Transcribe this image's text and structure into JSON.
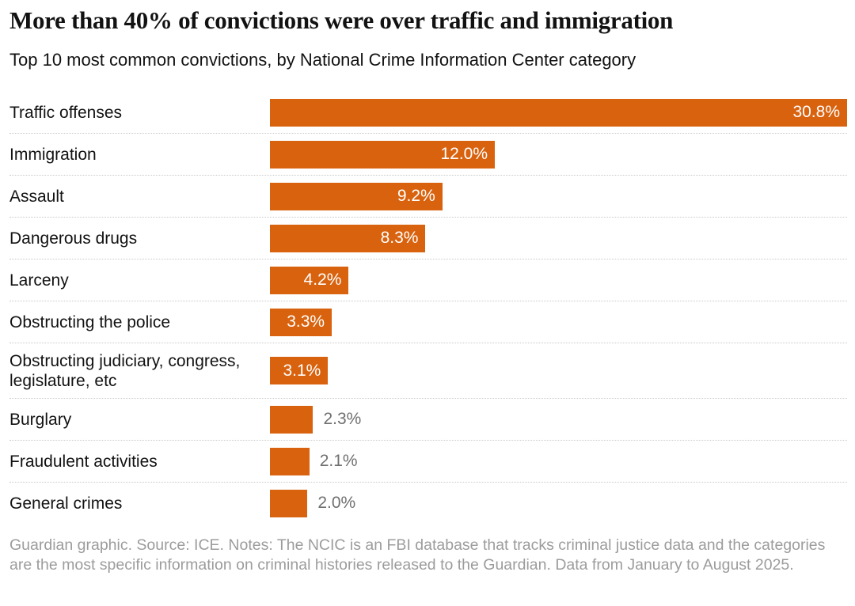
{
  "chart_data": {
    "type": "bar",
    "orientation": "horizontal",
    "title": "More than 40% of convictions were over traffic and immigration",
    "subtitle": "Top 10 most common convictions, by National Crime Information Center category",
    "categories": [
      "Traffic offenses",
      "Immigration",
      "Assault",
      "Dangerous drugs",
      "Larceny",
      "Obstructing the police",
      "Obstructing judiciary, congress, legislature, etc",
      "Burglary",
      "Fraudulent activities",
      "General crimes"
    ],
    "values": [
      30.8,
      12.0,
      9.2,
      8.3,
      4.2,
      3.3,
      3.1,
      2.3,
      2.1,
      2.0
    ],
    "value_labels": [
      "30.8%",
      "12.0%",
      "9.2%",
      "8.3%",
      "4.2%",
      "3.3%",
      "3.1%",
      "2.3%",
      "2.1%",
      "2.0%"
    ],
    "xlim": [
      0,
      30.8
    ],
    "inside_label_min": 3.0,
    "bar_color": "#d9620e",
    "grid": "dotted-row-separators",
    "legend": "none"
  },
  "colors": {
    "bar": "#d9620e",
    "value_label_inside": "#ffffff",
    "value_label_outside": "#707070",
    "separator": "#c9c9c9",
    "text": "#121212",
    "footer_text": "#9c9c9c",
    "background": "#ffffff"
  },
  "footer": {
    "note": "Guardian graphic. Source: ICE. Notes: The NCIC is an FBI database that tracks criminal justice data and the categories are the most specific information on criminal histories released to the Guardian. Data from January to August 2025."
  }
}
